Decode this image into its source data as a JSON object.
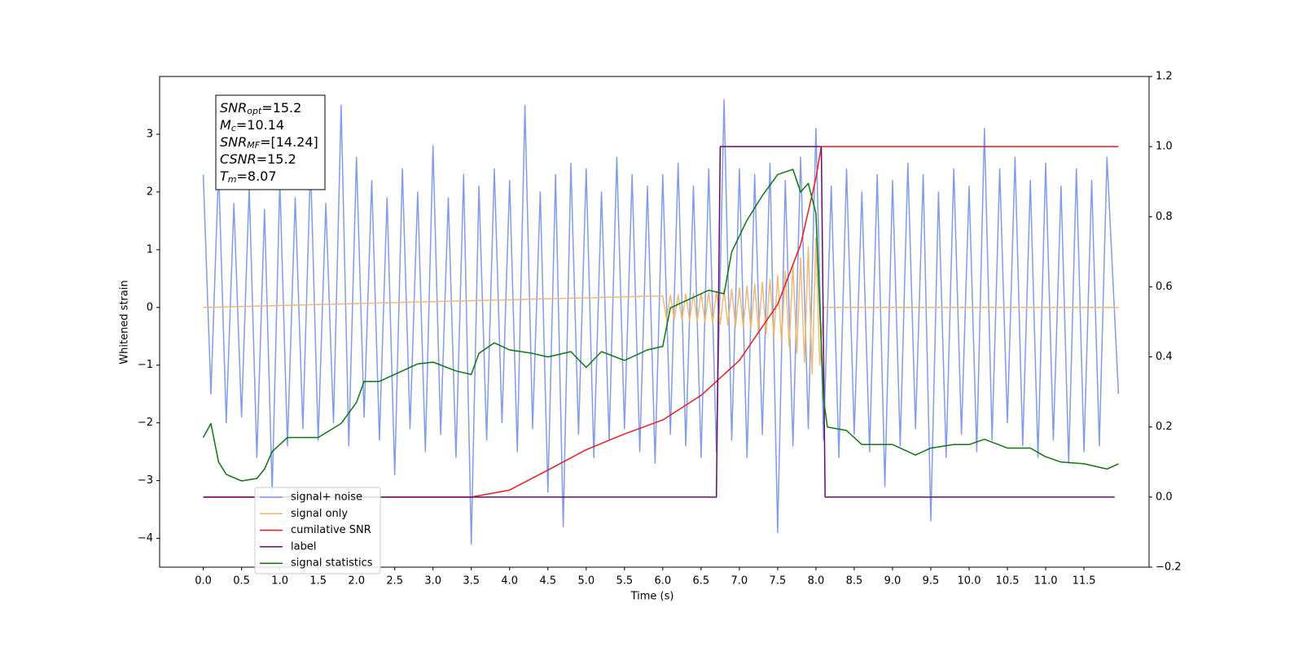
{
  "chart_data": {
    "type": "line",
    "xlabel": "Time (s)",
    "ylabel": "Whitened strain",
    "xlim": [
      -0.57,
      12.35
    ],
    "ylim": [
      -4.5,
      4.0
    ],
    "y2lim": [
      -0.2,
      1.2
    ],
    "xticks": [
      {
        "value": 0,
        "label": "0.0"
      },
      0.5,
      {
        "value": 1,
        "label": "1.0"
      },
      1.5,
      {
        "value": 2,
        "label": "2.0"
      },
      2.5,
      {
        "value": 3,
        "label": "3.0"
      },
      3.5,
      {
        "value": 4,
        "label": "4.0"
      },
      4.5,
      {
        "value": 5,
        "label": "5.0"
      },
      5.5,
      {
        "value": 6,
        "label": "6.0"
      },
      6.5,
      {
        "value": 7,
        "label": "7.0"
      },
      7.5,
      {
        "value": 8,
        "label": "8.0"
      },
      8.5,
      {
        "value": 9,
        "label": "9.0"
      },
      9.5,
      {
        "value": 10,
        "label": "10.0"
      },
      10.5,
      {
        "value": 11,
        "label": "11.0"
      },
      11.5
    ],
    "yticks": [
      {
        "value": -4,
        "label": "−4"
      },
      {
        "value": -3,
        "label": "−3"
      },
      {
        "value": -2,
        "label": "−2"
      },
      {
        "value": -1,
        "label": "−1"
      },
      0,
      1,
      2,
      3
    ],
    "y2ticks": [
      {
        "value": -0.2,
        "label": "−0.2"
      },
      {
        "value": 0,
        "label": "0.0"
      },
      0.2,
      0.4,
      0.6,
      0.8,
      {
        "value": 1,
        "label": "1.0"
      },
      1.2
    ],
    "legend_loc": "lower left",
    "annotation": [
      {
        "base": "SNR",
        "sub": "opt",
        "rest": "=15.2"
      },
      {
        "base": "M",
        "sub": "c",
        "rest": "=10.14"
      },
      {
        "base": "SNR",
        "sub": "MF",
        "rest": "=[14.24]"
      },
      {
        "base": "CSNR",
        "rest": "=15.2"
      },
      {
        "base": "T",
        "sub": "m",
        "rest": "=8.07"
      }
    ],
    "series": [
      {
        "name": "signal+ noise",
        "color": "#7b96e9",
        "axis": "y",
        "x": [
          0,
          0.1,
          0.2,
          0.3,
          0.4,
          0.5,
          0.6,
          0.7,
          0.8,
          0.9,
          1,
          1.1,
          1.2,
          1.3,
          1.4,
          1.5,
          1.6,
          1.7,
          1.8,
          1.9,
          2,
          2.1,
          2.2,
          2.3,
          2.4,
          2.5,
          2.6,
          2.7,
          2.8,
          2.9,
          3,
          3.1,
          3.2,
          3.3,
          3.4,
          3.5,
          3.6,
          3.7,
          3.8,
          3.9,
          4,
          4.1,
          4.2,
          4.3,
          4.4,
          4.5,
          4.6,
          4.7,
          4.8,
          4.9,
          5,
          5.1,
          5.2,
          5.3,
          5.4,
          5.5,
          5.6,
          5.7,
          5.8,
          5.9,
          6,
          6.1,
          6.2,
          6.3,
          6.4,
          6.5,
          6.6,
          6.7,
          6.8,
          6.9,
          7,
          7.1,
          7.2,
          7.3,
          7.4,
          7.5,
          7.6,
          7.7,
          7.8,
          7.9,
          8,
          8.1,
          8.2,
          8.3,
          8.4,
          8.5,
          8.6,
          8.7,
          8.8,
          8.9,
          9,
          9.1,
          9.2,
          9.3,
          9.4,
          9.5,
          9.6,
          9.7,
          9.8,
          9.9,
          10,
          10.1,
          10.2,
          10.3,
          10.4,
          10.5,
          10.6,
          10.7,
          10.8,
          10.9,
          11,
          11.1,
          11.2,
          11.3,
          11.4,
          11.5,
          11.6,
          11.7,
          11.8,
          11.95
        ],
        "values": [
          2.3,
          -1.5,
          2.4,
          -2.0,
          1.8,
          -1.9,
          2.1,
          -2.6,
          1.7,
          -3.2,
          2.2,
          -2.4,
          1.9,
          -2.1,
          2.5,
          -2.3,
          1.8,
          -2.0,
          3.5,
          -2.4,
          2.6,
          -1.9,
          2.2,
          -2.3,
          1.9,
          -2.9,
          2.4,
          -2.1,
          2.0,
          -2.5,
          2.8,
          -2.2,
          1.9,
          -2.6,
          2.3,
          -4.1,
          2.1,
          -2.3,
          2.4,
          -2.0,
          2.2,
          -2.5,
          3.5,
          -2.1,
          2.0,
          -3.2,
          2.3,
          -3.8,
          2.5,
          -2.2,
          2.4,
          -2.6,
          2.0,
          -2.3,
          2.6,
          -2.1,
          2.3,
          -2.5,
          2.1,
          -2.7,
          2.3,
          -2.2,
          2.5,
          -2.4,
          2.1,
          -2.6,
          2.4,
          -2.5,
          3.6,
          -2.3,
          2.4,
          -2.6,
          2.3,
          -2.2,
          2.5,
          -3.9,
          2.2,
          -2.4,
          2.6,
          -2.1,
          3.1,
          -2.3,
          2.1,
          -2.6,
          2.4,
          -2.2,
          2.0,
          -2.5,
          2.3,
          -3.1,
          2.2,
          -2.4,
          2.5,
          -2.1,
          2.3,
          -3.7,
          2.0,
          -2.6,
          2.4,
          -2.2,
          2.1,
          -2.5,
          3.1,
          -2.3,
          2.4,
          -2.0,
          2.6,
          -2.4,
          2.2,
          -2.6,
          2.5,
          -2.3,
          2.1,
          -2.7,
          2.4,
          -2.5,
          2.2,
          -2.4,
          2.6,
          -1.5
        ]
      },
      {
        "name": "signal only",
        "color": "#f0b66a",
        "axis": "y",
        "x": [
          0,
          6,
          6.05,
          6.1,
          6.15,
          6.2,
          6.25,
          6.3,
          6.35,
          6.4,
          6.45,
          6.5,
          6.55,
          6.6,
          6.65,
          6.7,
          6.75,
          6.8,
          6.85,
          6.9,
          6.95,
          7,
          7.05,
          7.1,
          7.15,
          7.2,
          7.25,
          7.3,
          7.35,
          7.4,
          7.45,
          7.5,
          7.55,
          7.6,
          7.65,
          7.7,
          7.75,
          7.8,
          7.85,
          7.9,
          7.95,
          8,
          8.05,
          8.1,
          11.95
        ],
        "values": [
          0,
          0.2,
          -0.2,
          0.21,
          -0.21,
          0.22,
          -0.22,
          0.23,
          -0.23,
          0.24,
          -0.24,
          0.25,
          -0.25,
          0.26,
          -0.27,
          0.28,
          -0.29,
          0.3,
          -0.31,
          0.32,
          -0.33,
          0.34,
          -0.35,
          0.37,
          -0.38,
          0.4,
          -0.42,
          0.44,
          -0.46,
          0.49,
          -0.52,
          0.55,
          -0.59,
          0.63,
          -0.68,
          0.73,
          -0.79,
          0.86,
          -0.95,
          1.05,
          -1.15,
          1.2,
          -1.0,
          0,
          0
        ]
      },
      {
        "name": "cumilative SNR",
        "color": "#ee1c1c",
        "axis": "y2",
        "x": [
          0,
          3.5,
          4,
          4.5,
          5,
          5.5,
          6,
          6.5,
          7,
          7.5,
          7.8,
          8,
          8.07,
          11.95
        ],
        "values": [
          0,
          0,
          0.02,
          0.077,
          0.135,
          0.18,
          0.22,
          0.29,
          0.39,
          0.55,
          0.72,
          0.91,
          1.0,
          1.0
        ]
      },
      {
        "name": "label",
        "color": "#6a0a6e",
        "axis": "y2",
        "x": [
          0,
          6.7,
          6.75,
          8.07,
          8.12,
          11.9
        ],
        "values": [
          0,
          0,
          1,
          1,
          0,
          0
        ]
      },
      {
        "name": "signal statistics",
        "color": "#0a7a0a",
        "axis": "y2",
        "x": [
          0,
          0.1,
          0.2,
          0.3,
          0.5,
          0.7,
          0.8,
          0.9,
          1,
          1.1,
          1.5,
          1.8,
          2,
          2.1,
          2.3,
          2.5,
          2.8,
          3,
          3.3,
          3.5,
          3.6,
          3.8,
          4,
          4.3,
          4.5,
          4.8,
          5,
          5.2,
          5.5,
          5.8,
          6,
          6.1,
          6.3,
          6.5,
          6.6,
          6.8,
          6.9,
          7.1,
          7.3,
          7.5,
          7.7,
          7.8,
          7.9,
          8,
          8.05,
          8.1,
          8.15,
          8.4,
          8.6,
          8.8,
          9,
          9.3,
          9.5,
          9.8,
          10,
          10.2,
          10.5,
          10.8,
          11,
          11.2,
          11.5,
          11.8,
          11.95
        ],
        "values": [
          0.17,
          0.21,
          0.1,
          0.065,
          0.046,
          0.053,
          0.08,
          0.13,
          0.15,
          0.17,
          0.17,
          0.21,
          0.27,
          0.33,
          0.33,
          0.35,
          0.38,
          0.385,
          0.36,
          0.35,
          0.41,
          0.44,
          0.42,
          0.41,
          0.4,
          0.415,
          0.37,
          0.415,
          0.39,
          0.42,
          0.43,
          0.54,
          0.56,
          0.58,
          0.59,
          0.58,
          0.7,
          0.79,
          0.86,
          0.92,
          0.935,
          0.87,
          0.895,
          0.81,
          0.54,
          0.28,
          0.2,
          0.19,
          0.15,
          0.15,
          0.15,
          0.12,
          0.14,
          0.15,
          0.15,
          0.165,
          0.14,
          0.14,
          0.115,
          0.1,
          0.095,
          0.08,
          0.095
        ]
      }
    ]
  }
}
